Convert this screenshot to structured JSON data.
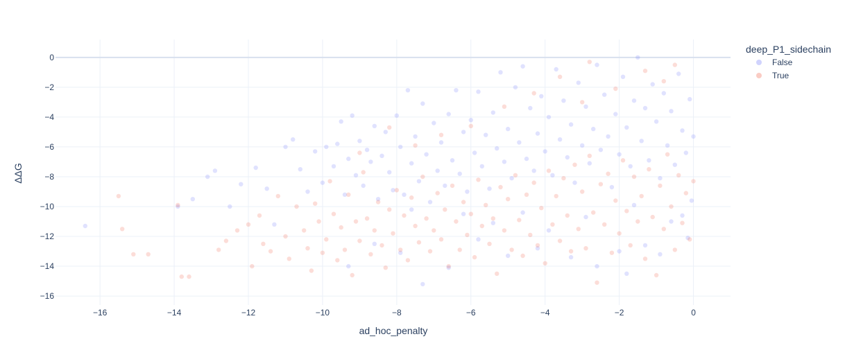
{
  "chart_data": {
    "type": "scatter",
    "title": "",
    "xlabel": "ad_hoc_penalty",
    "ylabel": "ΔΔG",
    "xlim": [
      -17.2,
      1.0
    ],
    "ylim": [
      -16.6,
      1.2
    ],
    "x_ticks": [
      -16,
      -14,
      -12,
      -10,
      -8,
      -6,
      -4,
      -2,
      0
    ],
    "y_ticks": [
      0,
      -2,
      -4,
      -6,
      -8,
      -10,
      -12,
      -14,
      -16
    ],
    "x_tick_labels": [
      "−16",
      "−14",
      "−12",
      "−10",
      "−8",
      "−6",
      "−4",
      "−2",
      "0"
    ],
    "y_tick_labels": [
      "0",
      "−2",
      "−4",
      "−6",
      "−8",
      "−10",
      "−12",
      "−14",
      "−16"
    ],
    "grid": true,
    "legend": {
      "title": "deep_P1_sidechain",
      "placement": "top-right"
    },
    "series": [
      {
        "name": "False",
        "color": "#636efa",
        "opacity": 0.2,
        "points": [
          [
            -16.4,
            -11.3
          ],
          [
            -13.9,
            -10.0
          ],
          [
            -13.5,
            -9.5
          ],
          [
            -13.1,
            -8.0
          ],
          [
            -12.9,
            -7.6
          ],
          [
            -12.5,
            -10.0
          ],
          [
            -12.2,
            -8.5
          ],
          [
            -11.8,
            -7.4
          ],
          [
            -11.5,
            -8.8
          ],
          [
            -11.3,
            -11.2
          ],
          [
            -11.0,
            -6.0
          ],
          [
            -10.8,
            -5.5
          ],
          [
            -10.6,
            -7.5
          ],
          [
            -10.4,
            -9.0
          ],
          [
            -10.2,
            -6.3
          ],
          [
            -10.0,
            -8.4
          ],
          [
            -9.9,
            -6.0
          ],
          [
            -9.7,
            -7.3
          ],
          [
            -9.6,
            -5.8
          ],
          [
            -9.5,
            -4.3
          ],
          [
            -9.4,
            -9.2
          ],
          [
            -9.3,
            -6.8
          ],
          [
            -9.2,
            -3.9
          ],
          [
            -9.1,
            -7.9
          ],
          [
            -9.0,
            -5.6
          ],
          [
            -8.9,
            -8.6
          ],
          [
            -8.8,
            -6.2
          ],
          [
            -8.7,
            -7.0
          ],
          [
            -8.6,
            -4.6
          ],
          [
            -8.5,
            -9.5
          ],
          [
            -8.4,
            -6.6
          ],
          [
            -8.3,
            -5.0
          ],
          [
            -8.2,
            -7.7
          ],
          [
            -8.1,
            -8.9
          ],
          [
            -8.0,
            -3.9
          ],
          [
            -7.9,
            -6.0
          ],
          [
            -7.8,
            -9.2
          ],
          [
            -7.7,
            -2.2
          ],
          [
            -7.6,
            -7.1
          ],
          [
            -7.5,
            -5.3
          ],
          [
            -7.4,
            -8.3
          ],
          [
            -7.3,
            -3.1
          ],
          [
            -7.2,
            -6.5
          ],
          [
            -7.1,
            -9.7
          ],
          [
            -7.0,
            -4.4
          ],
          [
            -6.9,
            -7.6
          ],
          [
            -6.8,
            -5.7
          ],
          [
            -6.7,
            -8.6
          ],
          [
            -6.6,
            -3.8
          ],
          [
            -6.5,
            -6.9
          ],
          [
            -6.4,
            -2.2
          ],
          [
            -6.3,
            -7.8
          ],
          [
            -6.2,
            -5.0
          ],
          [
            -6.1,
            -9.0
          ],
          [
            -6.0,
            -4.2
          ],
          [
            -5.9,
            -6.4
          ],
          [
            -5.8,
            -2.3
          ],
          [
            -5.7,
            -7.3
          ],
          [
            -5.6,
            -5.2
          ],
          [
            -5.5,
            -8.8
          ],
          [
            -5.4,
            -3.7
          ],
          [
            -5.3,
            -6.1
          ],
          [
            -5.2,
            -1.0
          ],
          [
            -5.1,
            -7.0
          ],
          [
            -5.0,
            -4.8
          ],
          [
            -4.9,
            -8.1
          ],
          [
            -4.8,
            -2.0
          ],
          [
            -4.7,
            -5.7
          ],
          [
            -4.6,
            -0.6
          ],
          [
            -4.5,
            -6.8
          ],
          [
            -4.4,
            -3.4
          ],
          [
            -4.3,
            -7.6
          ],
          [
            -4.2,
            -5.1
          ],
          [
            -4.1,
            -2.6
          ],
          [
            -4.0,
            -6.3
          ],
          [
            -3.9,
            -4.0
          ],
          [
            -3.8,
            -7.9
          ],
          [
            -3.7,
            -0.8
          ],
          [
            -3.6,
            -5.5
          ],
          [
            -3.5,
            -2.9
          ],
          [
            -3.4,
            -6.7
          ],
          [
            -3.3,
            -4.5
          ],
          [
            -3.2,
            -8.4
          ],
          [
            -3.1,
            -1.7
          ],
          [
            -3.0,
            -5.9
          ],
          [
            -2.9,
            -3.3
          ],
          [
            -2.8,
            -7.1
          ],
          [
            -2.7,
            -4.8
          ],
          [
            -2.6,
            -0.5
          ],
          [
            -2.5,
            -6.2
          ],
          [
            -2.4,
            -2.5
          ],
          [
            -2.3,
            -5.3
          ],
          [
            -2.2,
            -8.7
          ],
          [
            -2.1,
            -3.8
          ],
          [
            -2.0,
            -6.5
          ],
          [
            -1.9,
            -1.3
          ],
          [
            -1.8,
            -4.7
          ],
          [
            -1.7,
            -7.3
          ],
          [
            -1.6,
            -2.9
          ],
          [
            -1.5,
            0.0
          ],
          [
            -1.4,
            -5.6
          ],
          [
            -1.3,
            -3.4
          ],
          [
            -1.2,
            -6.9
          ],
          [
            -1.1,
            -1.8
          ],
          [
            -1.0,
            -4.3
          ],
          [
            -0.9,
            -8.1
          ],
          [
            -0.8,
            -2.4
          ],
          [
            -0.7,
            -5.9
          ],
          [
            -0.6,
            -3.6
          ],
          [
            -0.5,
            -7.2
          ],
          [
            -0.4,
            -1.1
          ],
          [
            -0.3,
            -4.9
          ],
          [
            -0.2,
            -6.4
          ],
          [
            -0.1,
            -2.8
          ],
          [
            0.0,
            -5.3
          ],
          [
            -0.05,
            -9.6
          ],
          [
            -0.15,
            -12.1
          ],
          [
            -0.6,
            -11.0
          ],
          [
            -1.3,
            -12.6
          ],
          [
            -2.0,
            -13.0
          ],
          [
            -2.6,
            -14.0
          ],
          [
            -3.3,
            -13.4
          ],
          [
            -4.2,
            -12.8
          ],
          [
            -5.0,
            -13.3
          ],
          [
            -5.8,
            -12.2
          ],
          [
            -6.6,
            -14.1
          ],
          [
            -7.3,
            -15.2
          ],
          [
            -7.9,
            -13.1
          ],
          [
            -8.6,
            -12.5
          ],
          [
            -9.3,
            -14.0
          ],
          [
            -1.8,
            -14.5
          ],
          [
            -0.9,
            -13.2
          ],
          [
            -3.9,
            -11.6
          ],
          [
            -4.6,
            -10.4
          ],
          [
            -5.4,
            -11.1
          ],
          [
            -6.2,
            -10.5
          ],
          [
            -2.9,
            -10.7
          ],
          [
            -1.6,
            -9.9
          ],
          [
            -0.3,
            -10.6
          ],
          [
            -7.6,
            -10.2
          ]
        ]
      },
      {
        "name": "True",
        "color": "#ef553b",
        "opacity": 0.2,
        "points": [
          [
            -15.5,
            -9.3
          ],
          [
            -15.4,
            -11.5
          ],
          [
            -15.1,
            -13.2
          ],
          [
            -14.7,
            -13.2
          ],
          [
            -13.9,
            -9.9
          ],
          [
            -13.8,
            -14.7
          ],
          [
            -13.6,
            -14.7
          ],
          [
            -12.8,
            -12.9
          ],
          [
            -12.6,
            -12.3
          ],
          [
            -12.3,
            -11.6
          ],
          [
            -12.0,
            -11.2
          ],
          [
            -11.9,
            -14.0
          ],
          [
            -11.7,
            -10.6
          ],
          [
            -11.6,
            -12.5
          ],
          [
            -11.4,
            -13.0
          ],
          [
            -11.2,
            -9.3
          ],
          [
            -11.0,
            -12.0
          ],
          [
            -10.9,
            -13.5
          ],
          [
            -10.7,
            -10.0
          ],
          [
            -10.5,
            -11.6
          ],
          [
            -10.4,
            -12.8
          ],
          [
            -10.3,
            -14.3
          ],
          [
            -10.2,
            -9.8
          ],
          [
            -10.1,
            -11.0
          ],
          [
            -10.0,
            -13.1
          ],
          [
            -9.9,
            -12.2
          ],
          [
            -9.8,
            -8.3
          ],
          [
            -9.7,
            -10.5
          ],
          [
            -9.6,
            -13.6
          ],
          [
            -9.5,
            -11.4
          ],
          [
            -9.4,
            -12.9
          ],
          [
            -9.3,
            -9.2
          ],
          [
            -9.2,
            -14.6
          ],
          [
            -9.1,
            -11.0
          ],
          [
            -9.0,
            -12.3
          ],
          [
            -8.9,
            -7.7
          ],
          [
            -8.8,
            -10.8
          ],
          [
            -8.7,
            -13.2
          ],
          [
            -8.6,
            -11.6
          ],
          [
            -8.5,
            -9.7
          ],
          [
            -8.4,
            -12.6
          ],
          [
            -8.3,
            -14.1
          ],
          [
            -8.2,
            -10.2
          ],
          [
            -8.1,
            -11.8
          ],
          [
            -8.0,
            -8.9
          ],
          [
            -7.9,
            -12.9
          ],
          [
            -7.8,
            -10.6
          ],
          [
            -7.7,
            -13.6
          ],
          [
            -7.6,
            -9.4
          ],
          [
            -7.5,
            -11.3
          ],
          [
            -7.4,
            -12.4
          ],
          [
            -7.3,
            -8.0
          ],
          [
            -7.2,
            -10.8
          ],
          [
            -7.1,
            -13.0
          ],
          [
            -7.0,
            -11.6
          ],
          [
            -6.9,
            -9.1
          ],
          [
            -6.8,
            -12.2
          ],
          [
            -6.7,
            -10.2
          ],
          [
            -6.6,
            -14.0
          ],
          [
            -6.5,
            -8.6
          ],
          [
            -6.4,
            -11.0
          ],
          [
            -6.3,
            -12.9
          ],
          [
            -6.2,
            -9.7
          ],
          [
            -6.1,
            -11.9
          ],
          [
            -6.0,
            -10.5
          ],
          [
            -5.9,
            -13.4
          ],
          [
            -5.8,
            -8.2
          ],
          [
            -5.7,
            -11.3
          ],
          [
            -5.6,
            -9.9
          ],
          [
            -5.5,
            -12.5
          ],
          [
            -5.4,
            -10.8
          ],
          [
            -5.3,
            -14.5
          ],
          [
            -5.2,
            -8.7
          ],
          [
            -5.1,
            -11.6
          ],
          [
            -5.0,
            -9.5
          ],
          [
            -4.9,
            -12.9
          ],
          [
            -4.8,
            -7.9
          ],
          [
            -4.7,
            -10.9
          ],
          [
            -4.6,
            -13.3
          ],
          [
            -4.5,
            -9.2
          ],
          [
            -4.4,
            -11.9
          ],
          [
            -4.3,
            -8.4
          ],
          [
            -4.2,
            -12.6
          ],
          [
            -4.1,
            -10.1
          ],
          [
            -4.0,
            -13.8
          ],
          [
            -3.9,
            -7.6
          ],
          [
            -3.8,
            -11.2
          ],
          [
            -3.7,
            -9.3
          ],
          [
            -3.6,
            -12.3
          ],
          [
            -3.5,
            -8.1
          ],
          [
            -3.4,
            -10.6
          ],
          [
            -3.3,
            -13.0
          ],
          [
            -3.2,
            -7.2
          ],
          [
            -3.1,
            -11.5
          ],
          [
            -3.0,
            -9.0
          ],
          [
            -2.9,
            -12.8
          ],
          [
            -2.8,
            -6.6
          ],
          [
            -2.7,
            -10.4
          ],
          [
            -2.6,
            -15.1
          ],
          [
            -2.5,
            -8.5
          ],
          [
            -2.4,
            -11.2
          ],
          [
            -2.3,
            -7.8
          ],
          [
            -2.2,
            -13.1
          ],
          [
            -2.1,
            -9.6
          ],
          [
            -2.0,
            -11.8
          ],
          [
            -1.9,
            -6.9
          ],
          [
            -1.8,
            -10.3
          ],
          [
            -1.7,
            -12.6
          ],
          [
            -1.6,
            -8.0
          ],
          [
            -1.5,
            -11.0
          ],
          [
            -1.4,
            -9.3
          ],
          [
            -1.3,
            -13.5
          ],
          [
            -1.2,
            -7.5
          ],
          [
            -1.1,
            -10.7
          ],
          [
            -1.0,
            -14.6
          ],
          [
            -0.9,
            -8.6
          ],
          [
            -0.8,
            -11.5
          ],
          [
            -0.7,
            -6.5
          ],
          [
            -0.6,
            -10.0
          ],
          [
            -0.5,
            -12.9
          ],
          [
            -0.4,
            -7.9
          ],
          [
            -0.3,
            -11.1
          ],
          [
            -0.2,
            -9.1
          ],
          [
            -0.1,
            -12.2
          ],
          [
            0.0,
            -8.3
          ],
          [
            -2.8,
            -0.3
          ],
          [
            -1.3,
            -0.9
          ],
          [
            -0.5,
            -0.5
          ],
          [
            -3.6,
            -1.3
          ],
          [
            -4.3,
            -2.4
          ],
          [
            -5.1,
            -3.3
          ],
          [
            -6.0,
            -4.6
          ],
          [
            -6.8,
            -5.2
          ],
          [
            -7.5,
            -5.9
          ],
          [
            -8.2,
            -4.7
          ],
          [
            -9.0,
            -6.4
          ],
          [
            -3.0,
            -3.0
          ],
          [
            -2.1,
            -2.1
          ],
          [
            -0.8,
            -1.6
          ]
        ]
      }
    ]
  }
}
